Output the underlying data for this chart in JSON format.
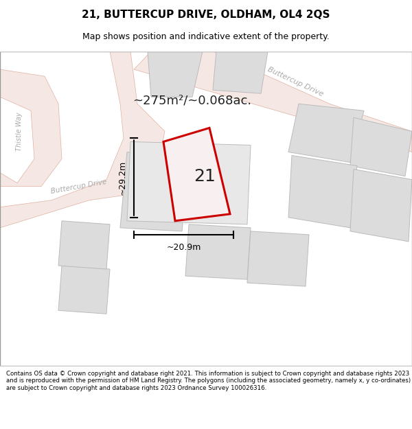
{
  "title_line1": "21, BUTTERCUP DRIVE, OLDHAM, OL4 2QS",
  "title_line2": "Map shows position and indicative extent of the property.",
  "area_text": "~275m²/~0.068ac.",
  "label_number": "21",
  "dim_width": "~20.9m",
  "dim_height": "~29.2m",
  "road_label1": "Buttercup Drive",
  "road_label2": "Buttercup Drive",
  "road_label3": "Thistle Way",
  "footer_text": "Contains OS data © Crown copyright and database right 2021. This information is subject to Crown copyright and database rights 2023 and is reproduced with the permission of HM Land Registry. The polygons (including the associated geometry, namely x, y co-ordinates) are subject to Crown copyright and database rights 2023 Ordnance Survey 100026316.",
  "bg_color": "#f0f0f0",
  "map_bg": "#f5f5f5",
  "plot_color": "#cc0000",
  "plot_fill": "#f0f0f0",
  "road_color": "#e8d0c8",
  "building_color": "#dcdcdc",
  "road_line_color": "#e0b0a0"
}
